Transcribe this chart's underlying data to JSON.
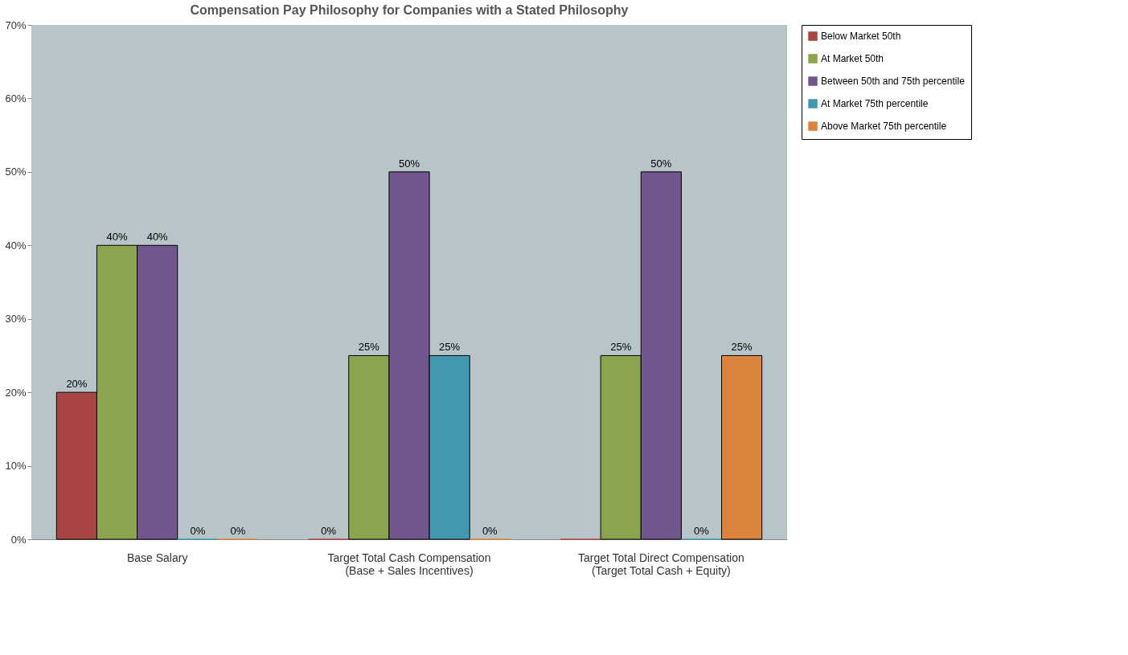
{
  "chart_data": {
    "type": "bar",
    "title": "Compensation Pay Philosophy for Companies with a Stated Philosophy",
    "categories": [
      "Base Salary",
      "Target Total Cash Compensation (Base + Sales Incentives)",
      "Target Total Direct Compensation (Target Total Cash + Equity)"
    ],
    "series": [
      {
        "name": "Below Market 50th",
        "color": "#a94643",
        "values": [
          20,
          0,
          0
        ],
        "value_labels": [
          "20%",
          "0%",
          null
        ]
      },
      {
        "name": "At Market 50th",
        "color": "#8aa54d",
        "values": [
          40,
          25,
          25
        ],
        "value_labels": [
          "40%",
          "25%",
          "25%"
        ]
      },
      {
        "name": "Between 50th and 75th percentile",
        "color": "#71578e",
        "values": [
          40,
          50,
          50
        ],
        "value_labels": [
          "40%",
          "50%",
          "50%"
        ]
      },
      {
        "name": "At Market 75th percentile",
        "color": "#4198af",
        "values": [
          0,
          25,
          0
        ],
        "value_labels": [
          "0%",
          "25%",
          "0%"
        ]
      },
      {
        "name": "Above Market 75th percentile",
        "color": "#db843d",
        "values": [
          0,
          0,
          25
        ],
        "value_labels": [
          "0%",
          "0%",
          "25%"
        ]
      }
    ],
    "ylim": [
      0,
      70
    ],
    "yticks": [
      {
        "value": 0,
        "label": "0%"
      },
      {
        "value": 10,
        "label": "10%"
      },
      {
        "value": 20,
        "label": "20%"
      },
      {
        "value": 30,
        "label": "30%"
      },
      {
        "value": 40,
        "label": "40%"
      },
      {
        "value": 50,
        "label": "50%"
      },
      {
        "value": 60,
        "label": "60%"
      },
      {
        "value": 70,
        "label": "70%"
      }
    ],
    "grid": false,
    "legend": "top right"
  }
}
